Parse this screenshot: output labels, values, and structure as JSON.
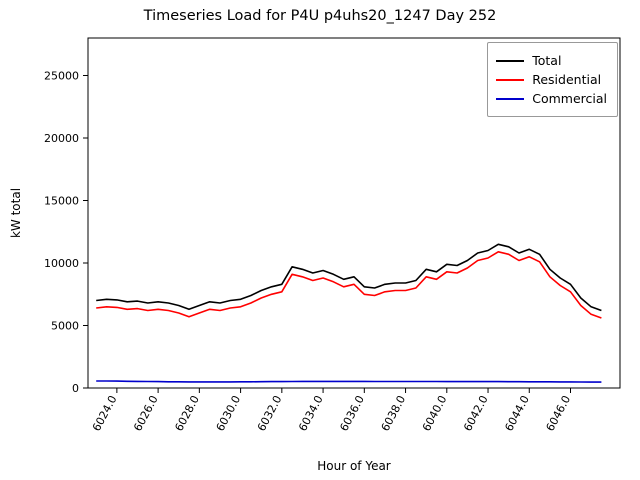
{
  "title": "Timeseries Load for P4U p4uhs20_1247  Day 252",
  "xlabel": "Hour of Year",
  "ylabel": "kW total",
  "chart_data": {
    "type": "line",
    "title": "Timeseries Load for P4U p4uhs20_1247  Day 252",
    "xlabel": "Hour of Year",
    "ylabel": "kW total",
    "xlim": [
      6022.6,
      6048.4
    ],
    "ylim": [
      0,
      28000
    ],
    "x_ticks": [
      6024.0,
      6026.0,
      6028.0,
      6030.0,
      6032.0,
      6034.0,
      6036.0,
      6038.0,
      6040.0,
      6042.0,
      6044.0,
      6046.0
    ],
    "y_ticks": [
      0,
      5000,
      10000,
      15000,
      20000,
      25000
    ],
    "grid": false,
    "legend_position": "upper right",
    "x": [
      6023.0,
      6023.5,
      6024.0,
      6024.5,
      6025.0,
      6025.5,
      6026.0,
      6026.5,
      6027.0,
      6027.5,
      6028.0,
      6028.5,
      6029.0,
      6029.5,
      6030.0,
      6030.5,
      6031.0,
      6031.5,
      6032.0,
      6032.5,
      6033.0,
      6033.5,
      6034.0,
      6034.5,
      6035.0,
      6035.5,
      6036.0,
      6036.5,
      6037.0,
      6037.5,
      6038.0,
      6038.5,
      6039.0,
      6039.5,
      6040.0,
      6040.5,
      6041.0,
      6041.5,
      6042.0,
      6042.5,
      6043.0,
      6043.5,
      6044.0,
      6044.5,
      6045.0,
      6045.5,
      6046.0,
      6046.5,
      6047.0,
      6047.5
    ],
    "series": [
      {
        "name": "Total",
        "color": "#000000",
        "values": [
          7000,
          7100,
          7050,
          6900,
          6950,
          6800,
          6900,
          6800,
          6600,
          6300,
          6600,
          6900,
          6800,
          7000,
          7100,
          7400,
          7800,
          8100,
          8300,
          9700,
          9500,
          9200,
          9400,
          9100,
          8700,
          8900,
          8100,
          8000,
          8300,
          8400,
          8400,
          8600,
          9500,
          9300,
          9900,
          9800,
          10200,
          10800,
          11000,
          11500,
          11300,
          10800,
          11100,
          10700,
          9500,
          8800,
          8300,
          7200,
          6500,
          6200
        ]
      },
      {
        "name": "Residential",
        "color": "#ff0000",
        "values": [
          6400,
          6500,
          6450,
          6300,
          6350,
          6200,
          6300,
          6200,
          6000,
          5700,
          6000,
          6300,
          6200,
          6400,
          6500,
          6800,
          7200,
          7500,
          7700,
          9100,
          8900,
          8600,
          8800,
          8500,
          8100,
          8300,
          7500,
          7400,
          7700,
          7800,
          7800,
          8000,
          8900,
          8700,
          9300,
          9200,
          9600,
          10200,
          10400,
          10900,
          10700,
          10200,
          10500,
          10100,
          8900,
          8200,
          7700,
          6600,
          5900,
          5600
        ]
      },
      {
        "name": "Commercial",
        "color": "#0000cc",
        "values": [
          560,
          560,
          550,
          540,
          530,
          520,
          510,
          500,
          495,
          490,
          485,
          485,
          485,
          490,
          495,
          500,
          505,
          510,
          515,
          520,
          525,
          530,
          530,
          530,
          530,
          528,
          525,
          522,
          520,
          520,
          520,
          520,
          520,
          518,
          515,
          512,
          510,
          510,
          510,
          508,
          505,
          502,
          500,
          498,
          495,
          490,
          485,
          480,
          475,
          470
        ]
      }
    ]
  }
}
